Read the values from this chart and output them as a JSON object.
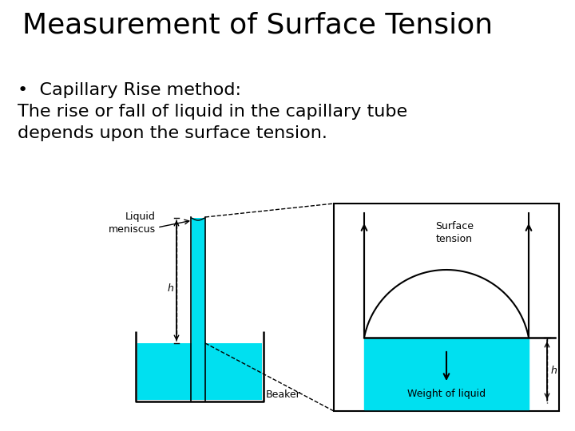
{
  "title": "Measurement of Surface Tension",
  "bullet": "•  Capillary Rise method:",
  "body": "The rise or fall of liquid in the capillary tube\ndepends upon the surface tension.",
  "bg_color": "#ffffff",
  "title_fontsize": 26,
  "body_fontsize": 16,
  "cyan_color": "#00e0f0",
  "black": "#000000",
  "fig_w": 7.2,
  "fig_h": 5.4,
  "dpi": 100
}
